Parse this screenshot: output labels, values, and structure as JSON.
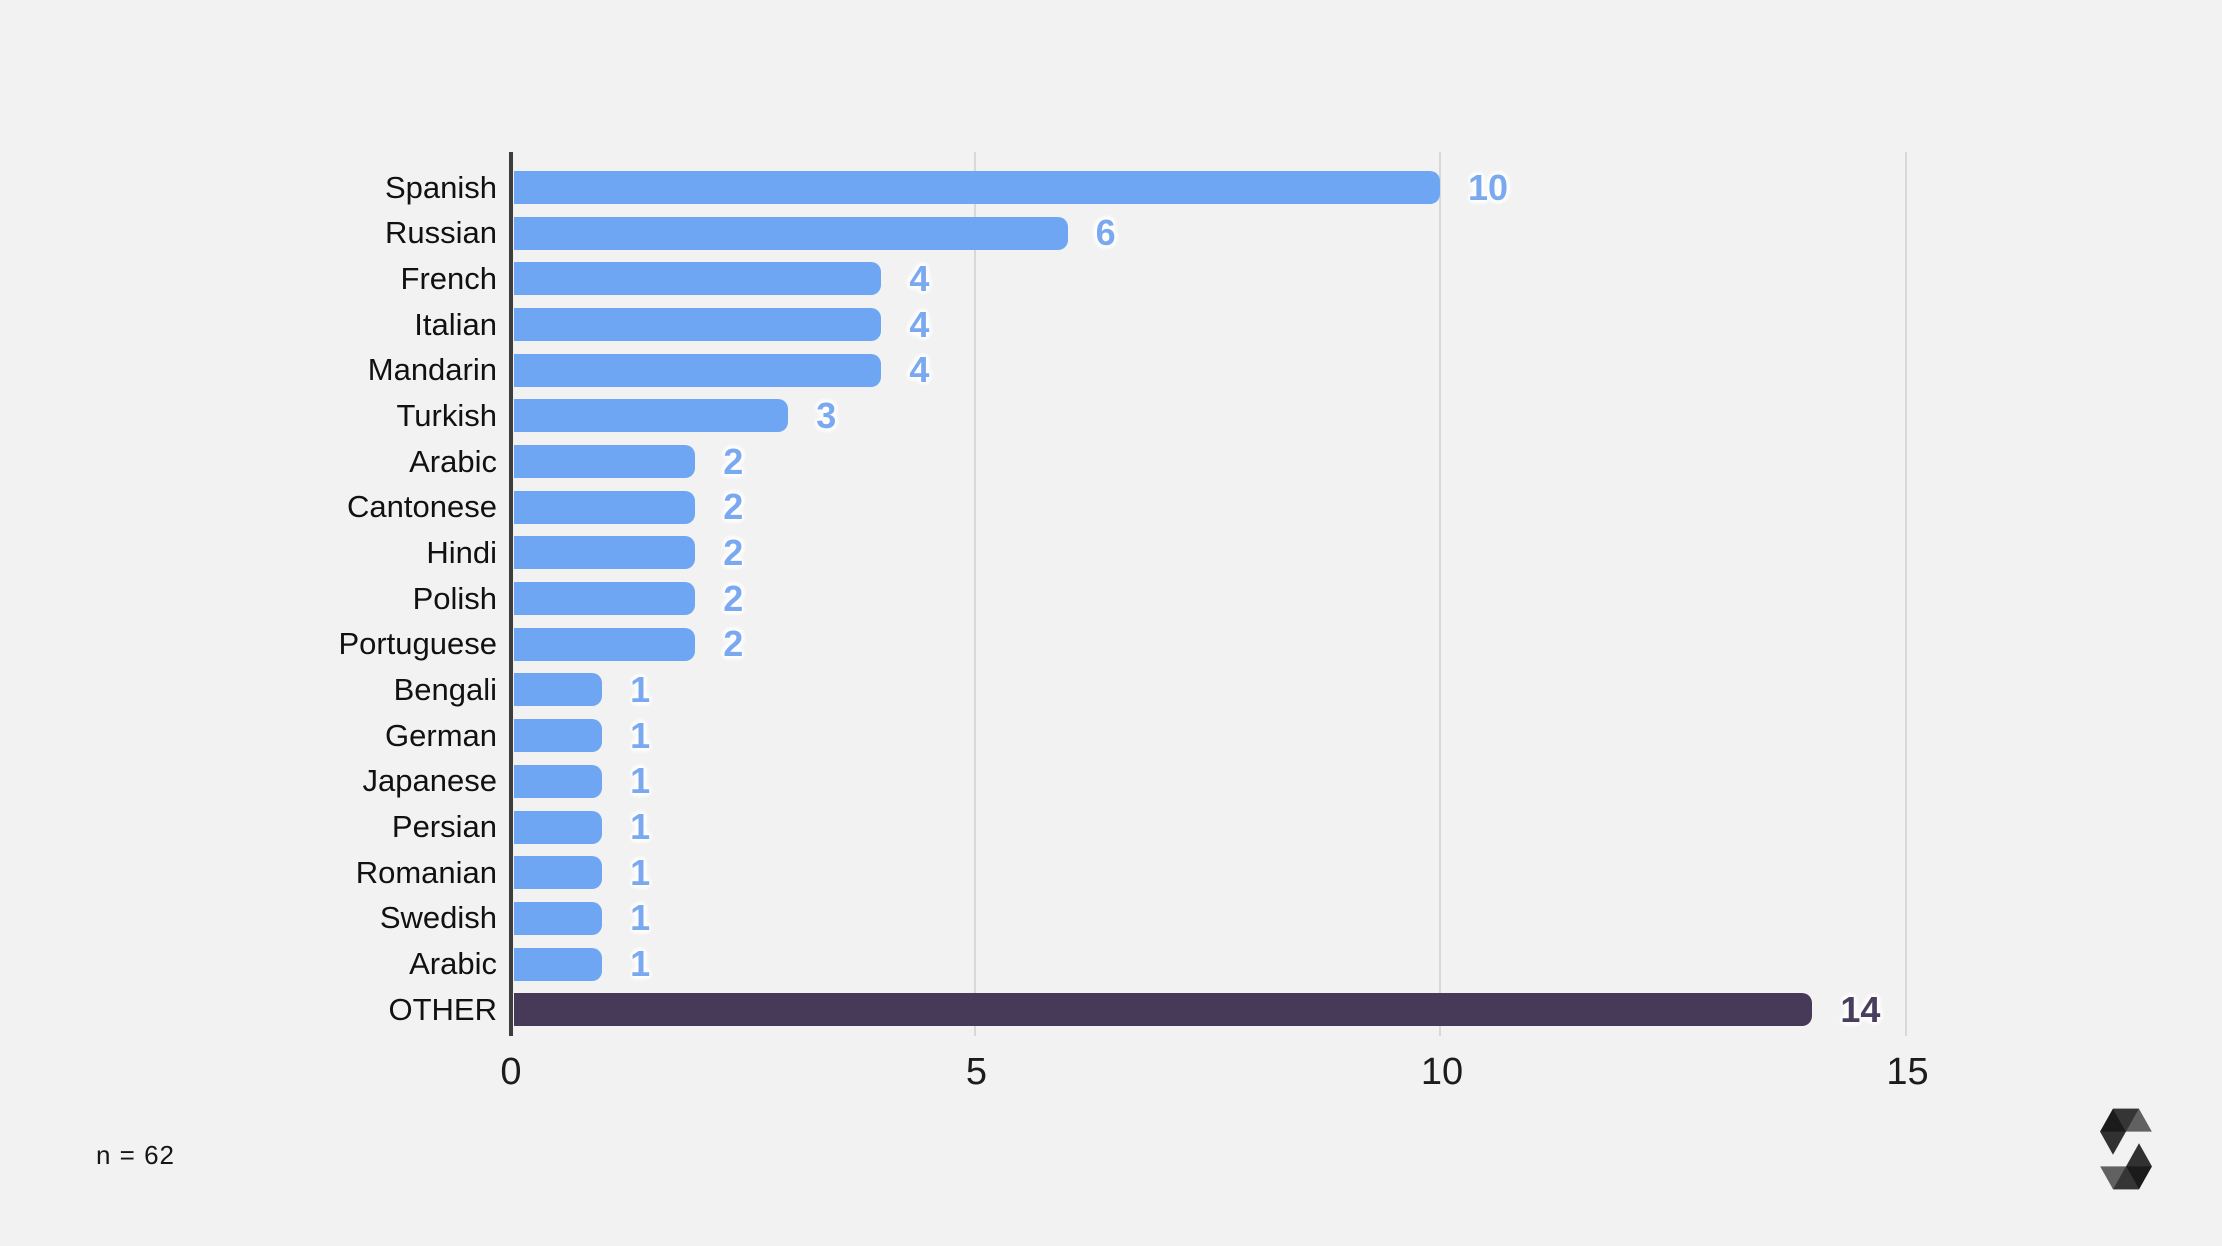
{
  "chart_data": {
    "type": "bar",
    "orientation": "horizontal",
    "title": "",
    "categories": [
      "Spanish",
      "Russian",
      "French",
      "Italian",
      "Mandarin",
      "Turkish",
      "Arabic",
      "Cantonese",
      "Hindi",
      "Polish",
      "Portuguese",
      "Bengali",
      "German",
      "Japanese",
      "Persian",
      "Romanian",
      "Swedish",
      "Arabic",
      "OTHER"
    ],
    "values": [
      10,
      6,
      4,
      4,
      4,
      3,
      2,
      2,
      2,
      2,
      2,
      1,
      1,
      1,
      1,
      1,
      1,
      1,
      14
    ],
    "xlabel": "",
    "ylabel": "",
    "xticks": [
      0,
      5,
      10,
      15
    ],
    "xlim": [
      0,
      15.8
    ],
    "grid": "vertical-only",
    "legend": "none",
    "highlight_category": "OTHER",
    "colors": {
      "background": "#f2f2f2",
      "bar": "#6ea6f3",
      "bar_value_label": "#7aa9f0",
      "highlight_bar": "#463a58",
      "highlight_value_label": "#4a3e5e",
      "category_label": "#111111",
      "tick_label": "#1c1c1c",
      "gridline": "#d8d8d8",
      "axis_line": "#3d3d3d"
    }
  },
  "footnote": "n = 62",
  "logo": {
    "name": "solidity-logo",
    "tones": [
      "#000000 @ 0.45",
      "#000000 @ 0.6",
      "#000000 @ 0.8"
    ]
  }
}
